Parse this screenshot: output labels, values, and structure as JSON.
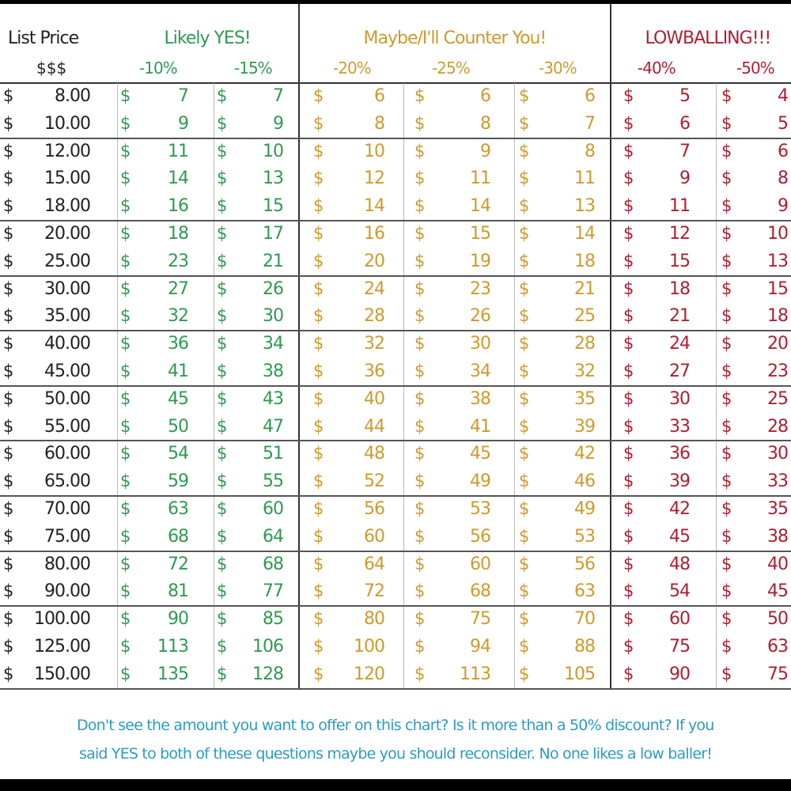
{
  "table": {
    "currency": "$",
    "header": {
      "list_price": "List Price",
      "list_price_sub": "$$$",
      "groups": [
        {
          "title": "Likely YES!",
          "columns": [
            "-10%",
            "-15%"
          ]
        },
        {
          "title": "Maybe/I'll Counter You!",
          "columns": [
            "-20%",
            "-25%",
            "-30%"
          ]
        },
        {
          "title": "LOWBALLING!!!",
          "columns": [
            "-40%",
            "-50%"
          ]
        }
      ]
    },
    "sections": [
      [
        [
          "8.00",
          7,
          7,
          6,
          6,
          6,
          5,
          4
        ],
        [
          "10.00",
          9,
          9,
          8,
          8,
          7,
          6,
          5
        ]
      ],
      [
        [
          "12.00",
          11,
          10,
          10,
          9,
          8,
          7,
          6
        ],
        [
          "15.00",
          14,
          13,
          12,
          11,
          11,
          9,
          8
        ],
        [
          "18.00",
          16,
          15,
          14,
          14,
          13,
          11,
          9
        ]
      ],
      [
        [
          "20.00",
          18,
          17,
          16,
          15,
          14,
          12,
          10
        ],
        [
          "25.00",
          23,
          21,
          20,
          19,
          18,
          15,
          13
        ]
      ],
      [
        [
          "30.00",
          27,
          26,
          24,
          23,
          21,
          18,
          15
        ],
        [
          "35.00",
          32,
          30,
          28,
          26,
          25,
          21,
          18
        ]
      ],
      [
        [
          "40.00",
          36,
          34,
          32,
          30,
          28,
          24,
          20
        ],
        [
          "45.00",
          41,
          38,
          36,
          34,
          32,
          27,
          23
        ]
      ],
      [
        [
          "50.00",
          45,
          43,
          40,
          38,
          35,
          30,
          25
        ],
        [
          "55.00",
          50,
          47,
          44,
          41,
          39,
          33,
          28
        ]
      ],
      [
        [
          "60.00",
          54,
          51,
          48,
          45,
          42,
          36,
          30
        ],
        [
          "65.00",
          59,
          55,
          52,
          49,
          46,
          39,
          33
        ]
      ],
      [
        [
          "70.00",
          63,
          60,
          56,
          53,
          49,
          42,
          35
        ],
        [
          "75.00",
          68,
          64,
          60,
          56,
          53,
          45,
          38
        ]
      ],
      [
        [
          "80.00",
          72,
          68,
          64,
          60,
          56,
          48,
          40
        ],
        [
          "90.00",
          81,
          77,
          72,
          68,
          63,
          54,
          45
        ]
      ],
      [
        [
          "100.00",
          90,
          85,
          80,
          75,
          70,
          60,
          50
        ],
        [
          "125.00",
          113,
          106,
          100,
          94,
          88,
          75,
          63
        ],
        [
          "150.00",
          135,
          128,
          120,
          113,
          105,
          90,
          75
        ]
      ]
    ]
  },
  "footer": {
    "lines": [
      "Don't see the amount you want to offer on this chart? Is it more than a 50% discount? If you",
      "said YES to both of these questions maybe you should reconsider. No one likes a low baller!"
    ]
  }
}
